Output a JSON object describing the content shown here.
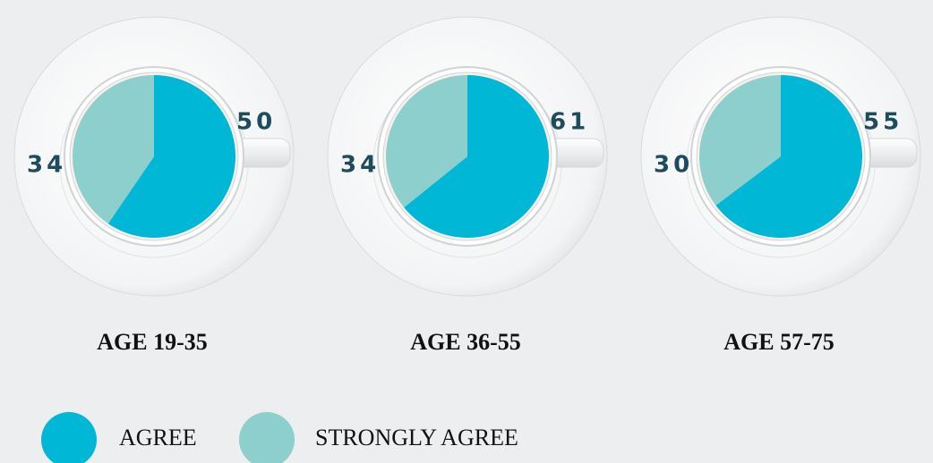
{
  "chart_data": [
    {
      "type": "pie",
      "title": "AGE 19-35",
      "categories": [
        "AGREE",
        "STRONGLY AGREE"
      ],
      "values": [
        50,
        34
      ],
      "colors": [
        "#00b8d6",
        "#8ccfcc"
      ]
    },
    {
      "type": "pie",
      "title": "AGE 36-55",
      "categories": [
        "AGREE",
        "STRONGLY AGREE"
      ],
      "values": [
        61,
        34
      ],
      "colors": [
        "#00b8d6",
        "#8ccfcc"
      ]
    },
    {
      "type": "pie",
      "title": "AGE 57-75",
      "categories": [
        "AGREE",
        "STRONGLY AGREE"
      ],
      "values": [
        55,
        30
      ],
      "colors": [
        "#00b8d6",
        "#8ccfcc"
      ]
    }
  ]
}
